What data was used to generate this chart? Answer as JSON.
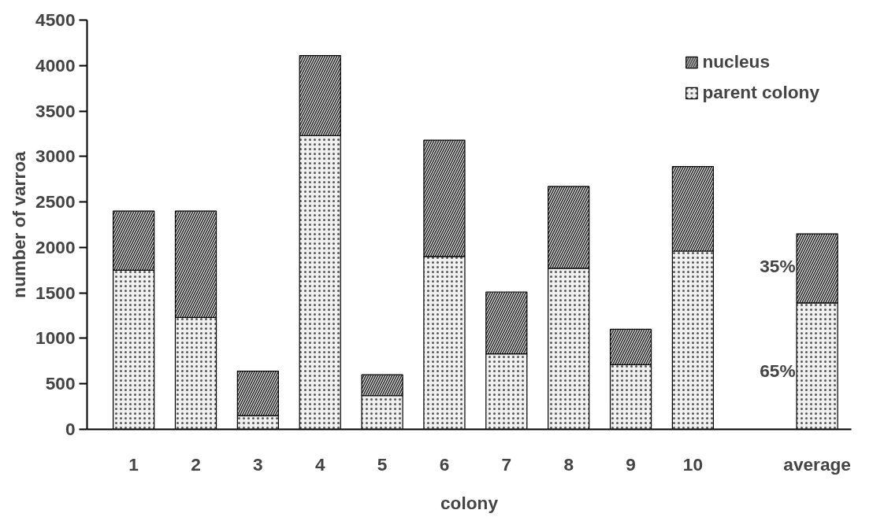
{
  "chart_data": {
    "type": "bar",
    "stacked": true,
    "xlabel": "colony",
    "ylabel": "number of varroa",
    "categories": [
      "1",
      "2",
      "3",
      "4",
      "5",
      "6",
      "7",
      "8",
      "9",
      "10",
      null,
      "average"
    ],
    "series": [
      {
        "name": "parent colony",
        "color": "#f0f0f0",
        "values": [
          1750,
          1230,
          150,
          3230,
          370,
          1900,
          830,
          1770,
          710,
          1960,
          null,
          1390
        ]
      },
      {
        "name": "nucleus",
        "color": "#3a3a3a",
        "values": [
          650,
          1170,
          490,
          880,
          230,
          1280,
          680,
          900,
          390,
          930,
          null,
          760
        ]
      }
    ],
    "ylim": [
      0,
      4500
    ],
    "yticks": [
      0,
      500,
      1000,
      1500,
      2000,
      2500,
      3000,
      3500,
      4000,
      4500
    ],
    "annotations": [
      "35%",
      "65%"
    ],
    "grid": false,
    "legend": "top right"
  }
}
